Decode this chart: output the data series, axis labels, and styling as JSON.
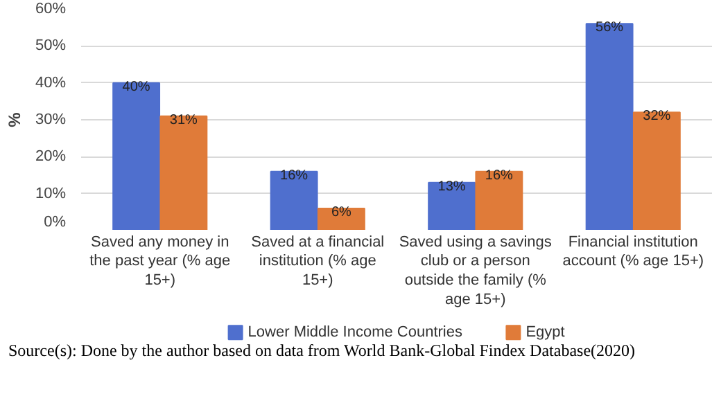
{
  "chart_data": {
    "type": "bar",
    "ylabel": "%",
    "categories": [
      "Saved any money in the past year (% age 15+)",
      "Saved at a financial institution (% age 15+)",
      "Saved using a savings club or a person outside the family (% age 15+)",
      "Financial institution account (% age 15+)"
    ],
    "series": [
      {
        "name": "Lower Middle Income Countries",
        "color": "#4f6fce",
        "values": [
          40,
          16,
          13,
          56
        ],
        "value_labels": [
          "40%",
          "16%",
          "13%",
          "56%"
        ]
      },
      {
        "name": "Egypt",
        "color": "#e07b39",
        "values": [
          31,
          6,
          16,
          32
        ],
        "value_labels": [
          "31%",
          "6%",
          "16%",
          "32%"
        ]
      }
    ],
    "ylim": [
      0,
      60
    ],
    "yticks": [
      {
        "value": 0,
        "label": "0%"
      },
      {
        "value": 10,
        "label": "10%"
      },
      {
        "value": 20,
        "label": "20%"
      },
      {
        "value": 30,
        "label": "30%"
      },
      {
        "value": 40,
        "label": "40%"
      },
      {
        "value": 50,
        "label": "50%"
      },
      {
        "value": 60,
        "label": "60%"
      }
    ],
    "grid": "y",
    "legend": "bottom",
    "annotations": [
      "Source(s): Done by the author based on data from World Bank-Global Findex Database(2020)"
    ]
  }
}
